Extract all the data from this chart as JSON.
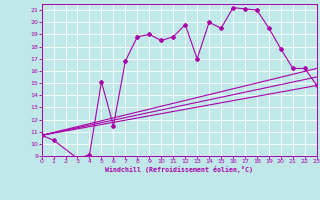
{
  "xlabel": "Windchill (Refroidissement éolien,°C)",
  "bg_color": "#c0e8e8",
  "line_color": "#aa00aa",
  "grid_color": "#ffffff",
  "xmin": 0,
  "xmax": 23,
  "ymin": 9,
  "ymax": 21.5,
  "yticks": [
    9,
    10,
    11,
    12,
    13,
    14,
    15,
    16,
    17,
    18,
    19,
    20,
    21
  ],
  "xticks": [
    0,
    1,
    2,
    3,
    4,
    5,
    6,
    7,
    8,
    9,
    10,
    11,
    12,
    13,
    14,
    15,
    16,
    17,
    18,
    19,
    20,
    21,
    22,
    23
  ],
  "curve1_x": [
    0,
    1,
    3,
    4,
    5,
    6,
    7,
    8,
    9,
    10,
    11,
    12,
    13,
    14,
    15,
    16,
    17,
    18,
    19,
    20,
    21,
    22,
    23
  ],
  "curve1_y": [
    10.7,
    10.3,
    8.8,
    9.1,
    15.1,
    11.5,
    16.8,
    18.8,
    19.0,
    18.5,
    18.8,
    19.8,
    17.0,
    20.0,
    19.5,
    21.2,
    21.1,
    21.0,
    19.5,
    17.8,
    16.2,
    16.2,
    14.8
  ],
  "curve2_x": [
    0,
    23
  ],
  "curve2_y": [
    10.7,
    14.8
  ],
  "curve3_x": [
    0,
    23
  ],
  "curve3_y": [
    10.7,
    16.2
  ],
  "curve4_x": [
    0,
    23
  ],
  "curve4_y": [
    10.7,
    15.5
  ]
}
